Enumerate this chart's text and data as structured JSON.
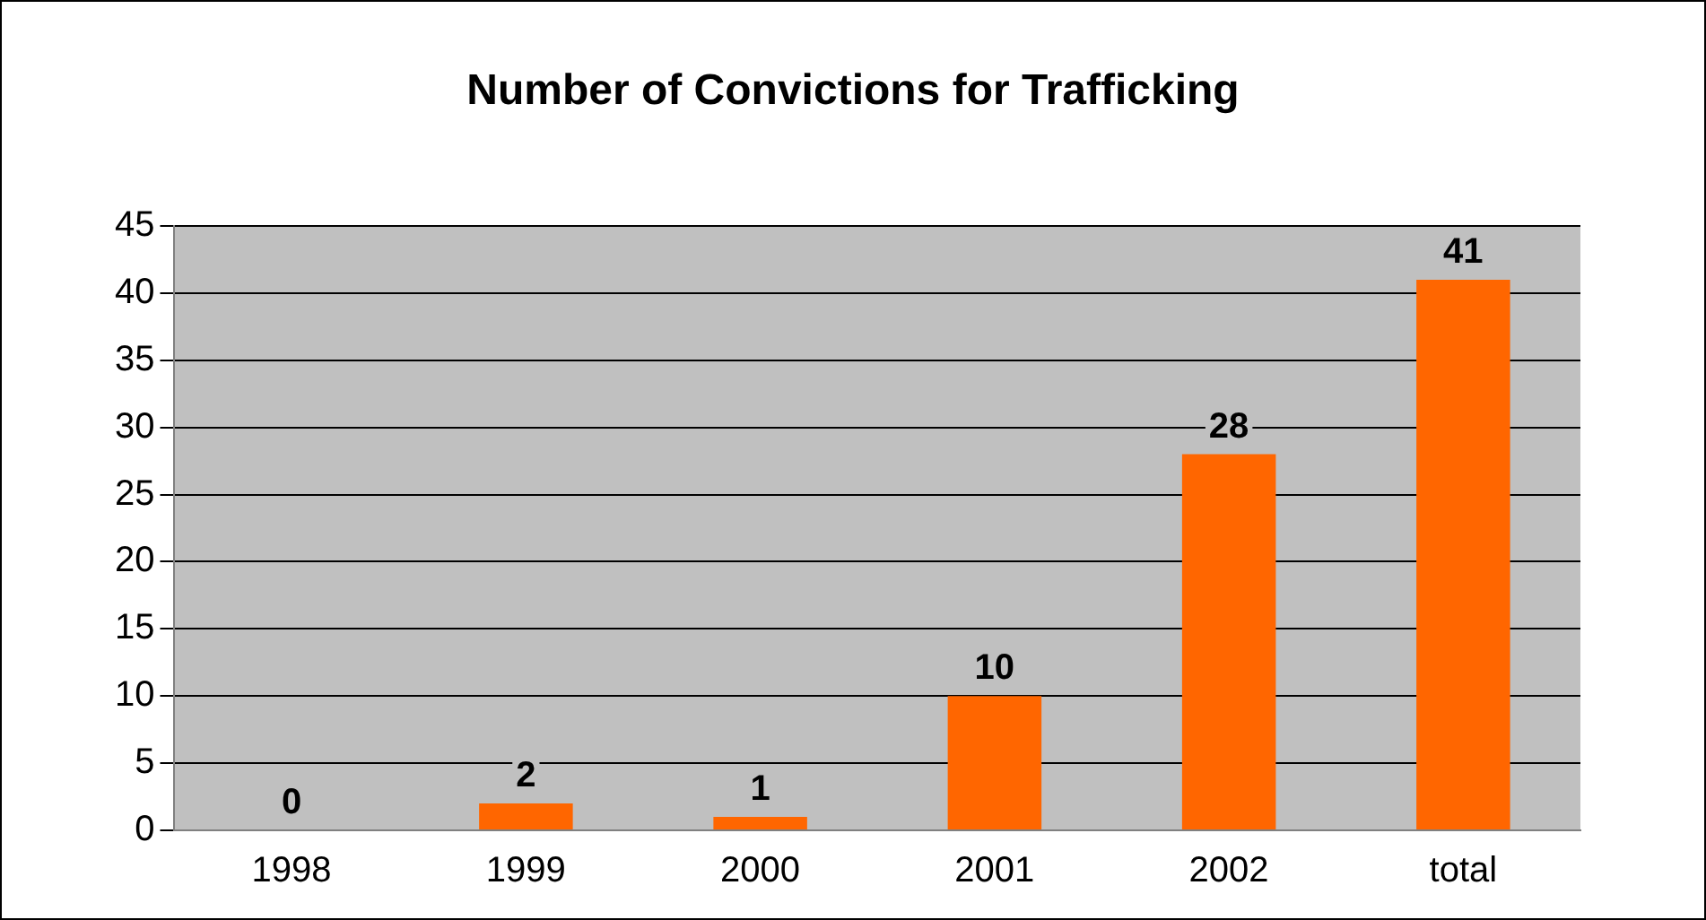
{
  "chart_data": {
    "type": "bar",
    "title": "Number of Convictions for Trafficking",
    "categories": [
      "1998",
      "1999",
      "2000",
      "2001",
      "2002",
      "total"
    ],
    "values": [
      0,
      2,
      1,
      10,
      28,
      41
    ],
    "color": "#ff6600",
    "ylim": [
      0,
      45
    ],
    "yticks": [
      0,
      5,
      10,
      15,
      20,
      25,
      30,
      35,
      40,
      45
    ],
    "grid": "y",
    "legend": false,
    "data_labels": true
  }
}
